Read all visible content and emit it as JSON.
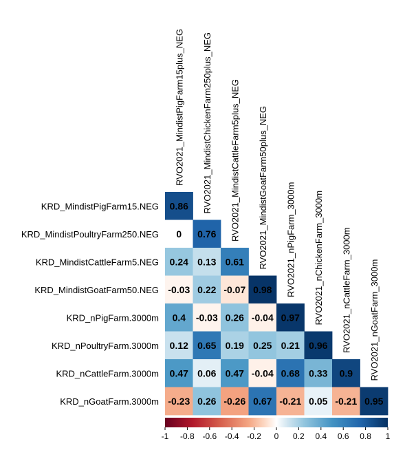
{
  "chart_data": {
    "type": "heatmap",
    "variant": "lower-triangular correlation matrix",
    "row_labels": [
      "KRD_MindistPigFarm15.NEG",
      "KRD_MindistPoultryFarm250.NEG",
      "KRD_MindistCattleFarm5.NEG",
      "KRD_MindistGoatFarm50.NEG",
      "KRD_nPigFarm.3000m",
      "KRD_nPoultryFarm.3000m",
      "KRD_nCattleFarm.3000m",
      "KRD_nGoatFarm.3000m"
    ],
    "col_labels": [
      "RVO2021_MindistPigFarm15plus_NEG",
      "RVO2021_MindistChickenFarm250plus_NEG",
      "RVO2021_MindistCattleFarm5plus_NEG",
      "RVO2021_MindistGoatFarm50plus_NEG",
      "RVO2021_nPigFarm_3000m",
      "RVO2021_nChickenFarm_3000m",
      "RVO2021_nCattleFarm_3000m",
      "RVO2021_nGoatFarm_3000m"
    ],
    "values": [
      [
        "0.86"
      ],
      [
        "0",
        "0.76"
      ],
      [
        "0.24",
        "0.13",
        "0.61"
      ],
      [
        "-0.03",
        "0.22",
        "-0.07",
        "0.98"
      ],
      [
        "0.4",
        "-0.03",
        "0.26",
        "-0.04",
        "0.97"
      ],
      [
        "0.12",
        "0.65",
        "0.19",
        "0.25",
        "0.21",
        "0.96"
      ],
      [
        "0.47",
        "0.06",
        "0.47",
        "-0.04",
        "0.68",
        "0.33",
        "0.9"
      ],
      [
        "-0.23",
        "0.26",
        "-0.26",
        "0.67",
        "-0.21",
        "0.05",
        "-0.21",
        "0.95"
      ]
    ],
    "colorbar": {
      "range": [
        -1,
        1
      ],
      "ticks": [
        "-1",
        "-0.8",
        "-0.6",
        "-0.4",
        "-0.2",
        "0",
        "0.2",
        "0.4",
        "0.6",
        "0.8",
        "1"
      ],
      "low_color": "#67001f",
      "mid_color": "#ffffff",
      "high_color": "#053061"
    }
  }
}
